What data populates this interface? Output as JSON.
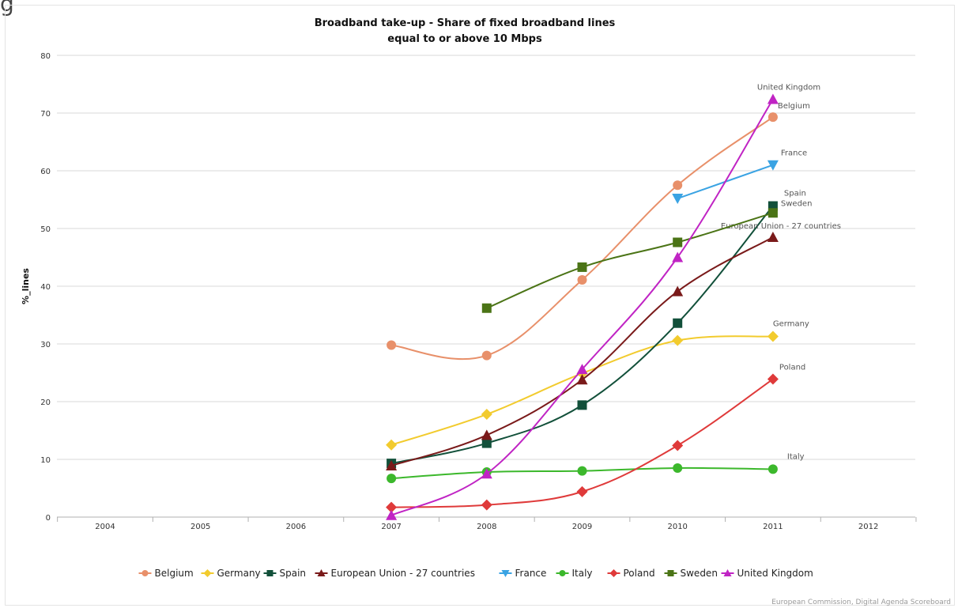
{
  "top_glyph": "g",
  "credit": "European Commission, Digital Agenda Scoreboard",
  "chart_data": {
    "type": "line",
    "title_lines": [
      "Broadband take-up - Share of fixed broadband lines",
      "equal to or above 10 Mbps"
    ],
    "xlabel": "",
    "ylabel": "%_lines",
    "x_ticks": [
      "2004",
      "2005",
      "2006",
      "2007",
      "2008",
      "2009",
      "2010",
      "2011",
      "2012"
    ],
    "y_ticks": [
      "0",
      "10",
      "20",
      "30",
      "40",
      "50",
      "60",
      "70",
      "80"
    ],
    "ylim": [
      0,
      80
    ],
    "grid": true,
    "legend_position": "bottom",
    "series": [
      {
        "name": "Belgium",
        "color": "#e8906a",
        "marker": "circle",
        "end_label": "Belgium",
        "points": [
          [
            2007,
            29.8
          ],
          [
            2008,
            28.0
          ],
          [
            2009,
            41.1
          ],
          [
            2010,
            57.5
          ],
          [
            2011,
            69.3
          ]
        ]
      },
      {
        "name": "Germany",
        "color": "#f2cb2e",
        "marker": "diamond",
        "end_label": "Germany",
        "points": [
          [
            2007,
            12.5
          ],
          [
            2008,
            17.8
          ],
          [
            2009,
            24.9
          ],
          [
            2010,
            30.6
          ],
          [
            2011,
            31.3
          ]
        ]
      },
      {
        "name": "Spain",
        "color": "#12503a",
        "marker": "square",
        "end_label": "Spain",
        "points": [
          [
            2007,
            9.3
          ],
          [
            2008,
            12.8
          ],
          [
            2009,
            19.4
          ],
          [
            2010,
            33.6
          ],
          [
            2011,
            53.9
          ]
        ]
      },
      {
        "name": "European Union - 27 countries",
        "color": "#7a1a1a",
        "marker": "triangle",
        "end_label": "European Union - 27 countries",
        "points": [
          [
            2007,
            8.9
          ],
          [
            2008,
            14.2
          ],
          [
            2009,
            23.8
          ],
          [
            2010,
            39.1
          ],
          [
            2011,
            48.5
          ]
        ]
      },
      {
        "name": "France",
        "color": "#3aa3e3",
        "marker": "triangle-down",
        "end_label": "France",
        "points": [
          [
            2010,
            55.2
          ],
          [
            2011,
            61.0
          ]
        ]
      },
      {
        "name": "Italy",
        "color": "#3cb82c",
        "marker": "circle",
        "end_label": "Italy",
        "points": [
          [
            2007,
            6.7
          ],
          [
            2008,
            7.8
          ],
          [
            2009,
            8.0
          ],
          [
            2010,
            8.5
          ],
          [
            2011,
            8.3
          ]
        ]
      },
      {
        "name": "Poland",
        "color": "#df3a3a",
        "marker": "diamond",
        "end_label": "Poland",
        "points": [
          [
            2007,
            1.7
          ],
          [
            2008,
            2.1
          ],
          [
            2009,
            4.4
          ],
          [
            2010,
            12.4
          ],
          [
            2011,
            23.9
          ]
        ]
      },
      {
        "name": "Sweden",
        "color": "#4b7416",
        "marker": "square",
        "end_label": "Sweden",
        "points": [
          [
            2008,
            36.2
          ],
          [
            2009,
            43.3
          ],
          [
            2010,
            47.6
          ],
          [
            2011,
            52.7
          ]
        ]
      },
      {
        "name": "United Kingdom",
        "color": "#c024c4",
        "marker": "triangle",
        "end_label": "United Kingdom",
        "points": [
          [
            2007,
            0.3
          ],
          [
            2008,
            7.5
          ],
          [
            2009,
            25.6
          ],
          [
            2010,
            45.0
          ],
          [
            2011,
            72.4
          ]
        ]
      }
    ]
  }
}
